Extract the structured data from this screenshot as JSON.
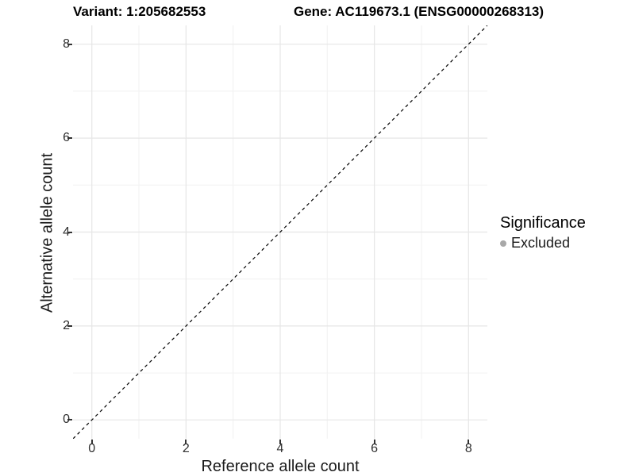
{
  "titles": {
    "variant": "Variant: 1:205682553",
    "gene": "Gene: AC119673.1 (ENSG00000268313)"
  },
  "chart_data": {
    "type": "scatter",
    "title_left": "Variant: 1:205682553",
    "title_right": "Gene: AC119673.1 (ENSG00000268313)",
    "xlabel": "Reference allele count",
    "ylabel": "Alternative allele count",
    "xlim": [
      -0.4,
      8.4
    ],
    "ylim": [
      -0.4,
      8.4
    ],
    "x_ticks": [
      0,
      2,
      4,
      6,
      8
    ],
    "y_ticks": [
      0,
      2,
      4,
      6,
      8
    ],
    "x_minor_ticks": [
      1,
      3,
      5,
      7
    ],
    "y_minor_ticks": [
      1,
      3,
      5,
      7
    ],
    "grid": true,
    "points": [],
    "reference_line": {
      "description": "identity line y = x",
      "style": "dashed",
      "from": [
        -0.4,
        -0.4
      ],
      "to": [
        8.4,
        8.4
      ]
    },
    "legend": {
      "title": "Significance",
      "position": "right",
      "entries": [
        {
          "label": "Excluded",
          "marker": "dot"
        }
      ]
    }
  },
  "colors": {
    "background": "#ffffff",
    "grid_major": "#e6e6e6",
    "grid_minor": "#f1f1f1",
    "axis_line": "#404040",
    "tick_mark": "#333333",
    "dashed_line": "#000000",
    "legend_dot": "#a8a8a8",
    "title_text": "#000000",
    "axis_text": "#303030"
  }
}
